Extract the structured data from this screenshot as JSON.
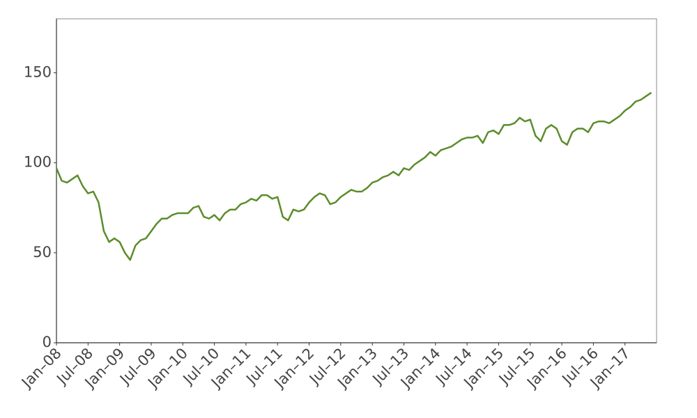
{
  "chart_data": {
    "type": "line",
    "x": [
      "2008-01",
      "2008-02",
      "2008-03",
      "2008-04",
      "2008-05",
      "2008-06",
      "2008-07",
      "2008-08",
      "2008-09",
      "2008-10",
      "2008-11",
      "2008-12",
      "2009-01",
      "2009-02",
      "2009-03",
      "2009-04",
      "2009-05",
      "2009-06",
      "2009-07",
      "2009-08",
      "2009-09",
      "2009-10",
      "2009-11",
      "2009-12",
      "2010-01",
      "2010-02",
      "2010-03",
      "2010-04",
      "2010-05",
      "2010-06",
      "2010-07",
      "2010-08",
      "2010-09",
      "2010-10",
      "2010-11",
      "2010-12",
      "2011-01",
      "2011-02",
      "2011-03",
      "2011-04",
      "2011-05",
      "2011-06",
      "2011-07",
      "2011-08",
      "2011-09",
      "2011-10",
      "2011-11",
      "2011-12",
      "2012-01",
      "2012-02",
      "2012-03",
      "2012-04",
      "2012-05",
      "2012-06",
      "2012-07",
      "2012-08",
      "2012-09",
      "2012-10",
      "2012-11",
      "2012-12",
      "2013-01",
      "2013-02",
      "2013-03",
      "2013-04",
      "2013-05",
      "2013-06",
      "2013-07",
      "2013-08",
      "2013-09",
      "2013-10",
      "2013-11",
      "2013-12",
      "2014-01",
      "2014-02",
      "2014-03",
      "2014-04",
      "2014-05",
      "2014-06",
      "2014-07",
      "2014-08",
      "2014-09",
      "2014-10",
      "2014-11",
      "2014-12",
      "2015-01",
      "2015-02",
      "2015-03",
      "2015-04",
      "2015-05",
      "2015-06",
      "2015-07",
      "2015-08",
      "2015-09",
      "2015-10",
      "2015-11",
      "2015-12",
      "2016-01",
      "2016-02",
      "2016-03",
      "2016-04",
      "2016-05",
      "2016-06",
      "2016-07",
      "2016-08",
      "2016-09",
      "2016-10",
      "2016-11",
      "2016-12",
      "2017-01",
      "2017-02",
      "2017-03",
      "2017-04",
      "2017-05",
      "2017-06"
    ],
    "values": [
      97,
      90,
      89,
      91,
      93,
      87,
      83,
      84,
      78,
      62,
      56,
      58,
      56,
      50,
      46,
      54,
      57,
      58,
      62,
      66,
      69,
      69,
      71,
      72,
      72,
      72,
      75,
      76,
      70,
      69,
      71,
      68,
      72,
      74,
      74,
      77,
      78,
      80,
      79,
      82,
      82,
      80,
      81,
      70,
      68,
      74,
      73,
      74,
      78,
      81,
      83,
      82,
      77,
      78,
      81,
      83,
      85,
      84,
      84,
      86,
      89,
      90,
      92,
      93,
      95,
      93,
      97,
      96,
      99,
      101,
      103,
      106,
      104,
      107,
      108,
      109,
      111,
      113,
      114,
      114,
      115,
      111,
      117,
      118,
      116,
      121,
      121,
      122,
      125,
      123,
      124,
      115,
      112,
      119,
      121,
      119,
      112,
      110,
      117,
      119,
      119,
      117,
      122,
      123,
      123,
      122,
      124,
      126,
      129,
      131,
      134,
      135,
      137,
      139
    ],
    "color": "#5b8c2a",
    "xlim": [
      "2008-01",
      "2017-07"
    ],
    "xticks": [
      {
        "value": "2008-01",
        "label": "Jan–08"
      },
      {
        "value": "2008-07",
        "label": "Jul–08"
      },
      {
        "value": "2009-01",
        "label": "Jan–09"
      },
      {
        "value": "2009-07",
        "label": "Jul–09"
      },
      {
        "value": "2010-01",
        "label": "Jan–10"
      },
      {
        "value": "2010-07",
        "label": "Jul–10"
      },
      {
        "value": "2011-01",
        "label": "Jan–11"
      },
      {
        "value": "2011-07",
        "label": "Jul–11"
      },
      {
        "value": "2012-01",
        "label": "Jan–12"
      },
      {
        "value": "2012-07",
        "label": "Jul–12"
      },
      {
        "value": "2013-01",
        "label": "Jan–13"
      },
      {
        "value": "2013-07",
        "label": "Jul–13"
      },
      {
        "value": "2014-01",
        "label": "Jan–14"
      },
      {
        "value": "2014-07",
        "label": "Jul–14"
      },
      {
        "value": "2015-01",
        "label": "Jan–15"
      },
      {
        "value": "2015-07",
        "label": "Jul–15"
      },
      {
        "value": "2016-01",
        "label": "Jan–16"
      },
      {
        "value": "2016-07",
        "label": "Jul–16"
      },
      {
        "value": "2017-01",
        "label": "Jan–17"
      }
    ],
    "ylim": [
      0,
      180
    ],
    "yticks": [
      0,
      50,
      100,
      150
    ]
  }
}
